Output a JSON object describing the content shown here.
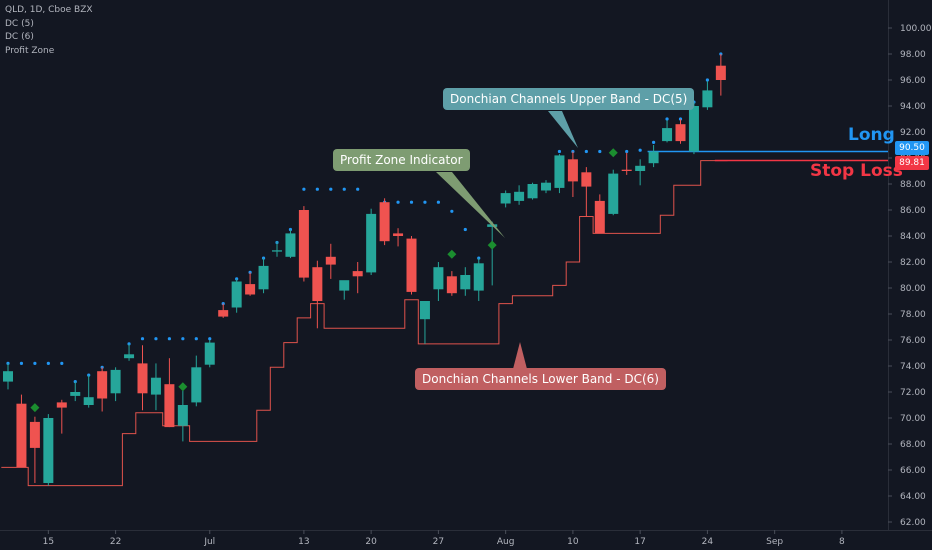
{
  "chart_data": {
    "type": "candlestick",
    "title": "QLD, 1D, Cboe BZX",
    "legend_items": [
      "QLD, 1D, Cboe BZX",
      "DC (5)",
      "DC (6)",
      "Profit Zone"
    ],
    "y_axis": {
      "ticks": [
        62,
        64,
        66,
        68,
        70,
        72,
        74,
        76,
        78,
        80,
        82,
        84,
        86,
        88,
        90,
        92,
        94,
        96,
        98,
        100
      ],
      "ylim": [
        61.2,
        101.7
      ]
    },
    "x_axis": {
      "tick_labels": [
        {
          "label": "15",
          "index": 3
        },
        {
          "label": "22",
          "index": 8
        },
        {
          "label": "Jul",
          "index": 15
        },
        {
          "label": "13",
          "index": 22
        },
        {
          "label": "20",
          "index": 27
        },
        {
          "label": "27",
          "index": 32
        },
        {
          "label": "Aug",
          "index": 37
        },
        {
          "label": "10",
          "index": 42
        },
        {
          "label": "17",
          "index": 47
        },
        {
          "label": "24",
          "index": 52
        },
        {
          "label": "Sep",
          "index": 57
        },
        {
          "label": "8",
          "index": 62
        }
      ]
    },
    "candles": [
      {
        "o": 72.8,
        "h": 74.2,
        "l": 72.2,
        "c": 73.6
      },
      {
        "o": 71.1,
        "h": 71.8,
        "l": 66.2,
        "c": 66.2
      },
      {
        "o": 69.7,
        "h": 70.1,
        "l": 65.0,
        "c": 67.7
      },
      {
        "o": 65.0,
        "h": 70.3,
        "l": 64.8,
        "c": 70.0
      },
      {
        "o": 71.2,
        "h": 71.4,
        "l": 68.8,
        "c": 70.8
      },
      {
        "o": 71.7,
        "h": 72.8,
        "l": 71.3,
        "c": 72.0
      },
      {
        "o": 71.0,
        "h": 73.3,
        "l": 70.8,
        "c": 71.6
      },
      {
        "o": 73.6,
        "h": 73.9,
        "l": 70.5,
        "c": 71.5
      },
      {
        "o": 71.9,
        "h": 73.9,
        "l": 71.3,
        "c": 73.7
      },
      {
        "o": 74.6,
        "h": 75.7,
        "l": 74.4,
        "c": 74.9
      },
      {
        "o": 74.2,
        "h": 75.6,
        "l": 70.6,
        "c": 71.9
      },
      {
        "o": 71.8,
        "h": 74.2,
        "l": 70.6,
        "c": 73.1
      },
      {
        "o": 72.6,
        "h": 74.6,
        "l": 69.3,
        "c": 69.3
      },
      {
        "o": 69.4,
        "h": 72.3,
        "l": 68.2,
        "c": 71.0
      },
      {
        "o": 71.2,
        "h": 74.8,
        "l": 70.9,
        "c": 73.9
      },
      {
        "o": 74.1,
        "h": 76.0,
        "l": 73.9,
        "c": 75.8
      },
      {
        "o": 78.3,
        "h": 78.8,
        "l": 77.7,
        "c": 77.8
      },
      {
        "o": 78.5,
        "h": 80.7,
        "l": 78.1,
        "c": 80.5
      },
      {
        "o": 80.3,
        "h": 81.2,
        "l": 79.4,
        "c": 79.5
      },
      {
        "o": 79.9,
        "h": 82.3,
        "l": 79.6,
        "c": 81.7
      },
      {
        "o": 82.8,
        "h": 83.6,
        "l": 82.4,
        "c": 82.9
      },
      {
        "o": 82.4,
        "h": 84.5,
        "l": 82.3,
        "c": 84.2
      },
      {
        "o": 86.0,
        "h": 86.3,
        "l": 80.5,
        "c": 80.8
      },
      {
        "o": 81.6,
        "h": 82.1,
        "l": 76.9,
        "c": 79.0
      },
      {
        "o": 82.4,
        "h": 83.4,
        "l": 80.7,
        "c": 81.8
      },
      {
        "o": 79.8,
        "h": 80.5,
        "l": 79.1,
        "c": 80.6
      },
      {
        "o": 81.3,
        "h": 82.0,
        "l": 79.6,
        "c": 80.9
      },
      {
        "o": 81.2,
        "h": 86.1,
        "l": 81.0,
        "c": 85.7
      },
      {
        "o": 86.6,
        "h": 86.9,
        "l": 83.3,
        "c": 83.6
      },
      {
        "o": 84.2,
        "h": 84.6,
        "l": 83.2,
        "c": 84.0
      },
      {
        "o": 83.8,
        "h": 84.0,
        "l": 79.5,
        "c": 79.7
      },
      {
        "o": 77.6,
        "h": 78.8,
        "l": 75.7,
        "c": 79.0
      },
      {
        "o": 79.9,
        "h": 82.0,
        "l": 79.0,
        "c": 81.6
      },
      {
        "o": 80.9,
        "h": 81.3,
        "l": 79.4,
        "c": 79.6
      },
      {
        "o": 79.9,
        "h": 81.6,
        "l": 79.4,
        "c": 81.0
      },
      {
        "o": 79.8,
        "h": 82.3,
        "l": 79.0,
        "c": 81.9
      },
      {
        "o": 84.7,
        "h": 85.1,
        "l": 80.2,
        "c": 84.9
      },
      {
        "o": 86.5,
        "h": 87.5,
        "l": 86.2,
        "c": 87.3
      },
      {
        "o": 86.7,
        "h": 87.9,
        "l": 86.4,
        "c": 87.4
      },
      {
        "o": 86.9,
        "h": 88.1,
        "l": 86.8,
        "c": 88.0
      },
      {
        "o": 87.5,
        "h": 88.3,
        "l": 87.3,
        "c": 88.1
      },
      {
        "o": 87.7,
        "h": 90.3,
        "l": 87.3,
        "c": 90.2
      },
      {
        "o": 89.9,
        "h": 90.5,
        "l": 87.0,
        "c": 88.2
      },
      {
        "o": 88.9,
        "h": 89.3,
        "l": 85.5,
        "c": 87.8
      },
      {
        "o": 86.7,
        "h": 87.2,
        "l": 84.2,
        "c": 84.2
      },
      {
        "o": 85.7,
        "h": 89.1,
        "l": 85.6,
        "c": 88.8
      },
      {
        "o": 89.1,
        "h": 90.4,
        "l": 88.7,
        "c": 89.0
      },
      {
        "o": 89.0,
        "h": 89.9,
        "l": 87.9,
        "c": 89.4
      },
      {
        "o": 89.6,
        "h": 91.0,
        "l": 89.3,
        "c": 90.5
      },
      {
        "o": 91.3,
        "h": 92.9,
        "l": 91.2,
        "c": 92.3
      },
      {
        "o": 92.6,
        "h": 93.0,
        "l": 91.1,
        "c": 91.3
      },
      {
        "o": 90.5,
        "h": 94.3,
        "l": 90.3,
        "c": 94.0
      },
      {
        "o": 93.9,
        "h": 95.9,
        "l": 93.7,
        "c": 95.2
      },
      {
        "o": 97.1,
        "h": 98.0,
        "l": 94.8,
        "c": 96.0
      }
    ],
    "dc5_upper_dots": [
      {
        "i": 0,
        "v": 74.2
      },
      {
        "i": 1,
        "v": 74.2
      },
      {
        "i": 2,
        "v": 74.2
      },
      {
        "i": 3,
        "v": 74.2
      },
      {
        "i": 4,
        "v": 74.2
      },
      {
        "i": 5,
        "v": 72.8
      },
      {
        "i": 6,
        "v": 73.3
      },
      {
        "i": 7,
        "v": 73.9
      },
      {
        "i": 9,
        "v": 75.7
      },
      {
        "i": 10,
        "v": 76.1
      },
      {
        "i": 11,
        "v": 76.1
      },
      {
        "i": 12,
        "v": 76.1
      },
      {
        "i": 13,
        "v": 76.1
      },
      {
        "i": 14,
        "v": 76.1
      },
      {
        "i": 15,
        "v": 76.1
      },
      {
        "i": 16,
        "v": 78.8
      },
      {
        "i": 17,
        "v": 80.7
      },
      {
        "i": 18,
        "v": 81.2
      },
      {
        "i": 19,
        "v": 82.3
      },
      {
        "i": 20,
        "v": 83.5
      },
      {
        "i": 21,
        "v": 84.5
      },
      {
        "i": 22,
        "v": 87.6
      },
      {
        "i": 23,
        "v": 87.6
      },
      {
        "i": 24,
        "v": 87.6
      },
      {
        "i": 25,
        "v": 87.6
      },
      {
        "i": 26,
        "v": 87.6
      },
      {
        "i": 28,
        "v": 86.6
      },
      {
        "i": 29,
        "v": 86.6
      },
      {
        "i": 30,
        "v": 86.6
      },
      {
        "i": 31,
        "v": 86.6
      },
      {
        "i": 32,
        "v": 86.6
      },
      {
        "i": 33,
        "v": 85.9
      },
      {
        "i": 34,
        "v": 84.5
      },
      {
        "i": 35,
        "v": 82.3
      },
      {
        "i": 41,
        "v": 90.5
      },
      {
        "i": 42,
        "v": 90.5
      },
      {
        "i": 43,
        "v": 90.5
      },
      {
        "i": 44,
        "v": 90.5
      },
      {
        "i": 45,
        "v": 90.5
      },
      {
        "i": 46,
        "v": 90.5
      },
      {
        "i": 47,
        "v": 90.6
      },
      {
        "i": 48,
        "v": 91.2
      },
      {
        "i": 49,
        "v": 93.0
      },
      {
        "i": 50,
        "v": 93.0
      },
      {
        "i": 51,
        "v": 94.3
      },
      {
        "i": 52,
        "v": 96.0
      },
      {
        "i": 53,
        "v": 98.0
      }
    ],
    "dc6_lower_steps": [
      {
        "start": 0,
        "v": 66.2
      },
      {
        "start": 2,
        "v": 64.8
      },
      {
        "start": 9,
        "v": 68.8
      },
      {
        "start": 10,
        "v": 70.4
      },
      {
        "start": 12,
        "v": 69.4
      },
      {
        "start": 14,
        "v": 68.2
      },
      {
        "start": 19,
        "v": 70.6
      },
      {
        "start": 20,
        "v": 73.9
      },
      {
        "start": 21,
        "v": 75.8
      },
      {
        "start": 22,
        "v": 77.7
      },
      {
        "start": 23,
        "v": 78.8
      },
      {
        "start": 24,
        "v": 76.9
      },
      {
        "start": 30,
        "v": 79.1
      },
      {
        "start": 31,
        "v": 75.7
      },
      {
        "start": 37,
        "v": 78.8
      },
      {
        "start": 38,
        "v": 79.4
      },
      {
        "start": 41,
        "v": 80.2
      },
      {
        "start": 42,
        "v": 82.0
      },
      {
        "start": 43,
        "v": 85.5
      },
      {
        "start": 44,
        "v": 84.2
      },
      {
        "start": 48,
        "v": 84.2
      },
      {
        "start": 49,
        "v": 85.6
      },
      {
        "start": 50,
        "v": 87.9
      },
      {
        "start": 52,
        "v": 89.8
      }
    ],
    "profit_zone_markers": [
      {
        "i": 2,
        "v": 70.8
      },
      {
        "i": 13,
        "v": 72.4
      },
      {
        "i": 33,
        "v": 82.6
      },
      {
        "i": 36,
        "v": 83.3
      },
      {
        "i": 45,
        "v": 90.4
      }
    ],
    "long_level": {
      "value": 90.5,
      "price_tag": "90.50",
      "label": "Long"
    },
    "stop_loss_level": {
      "value": 89.81,
      "price_tag": "89.81",
      "label": "Stop Loss"
    },
    "callouts": {
      "upper": "Donchian Channels Upper Band - DC(5)",
      "profit": "Profit Zone Indicator",
      "lower": "Donchian Channels Lower Band - DC(6)"
    },
    "colors": {
      "background": "#131722",
      "up": "#26a69a",
      "down": "#ef5350",
      "upper_dots": "#2196f3",
      "lower_line": "#e0534c",
      "profit_marker": "#1b8e2f",
      "long": "#2196f3",
      "stop": "#f23645",
      "axis_text": "#b2b5be",
      "callout_upper": "#5e9fa8",
      "callout_profit": "#7e9c72",
      "callout_lower": "#c05f61"
    }
  }
}
